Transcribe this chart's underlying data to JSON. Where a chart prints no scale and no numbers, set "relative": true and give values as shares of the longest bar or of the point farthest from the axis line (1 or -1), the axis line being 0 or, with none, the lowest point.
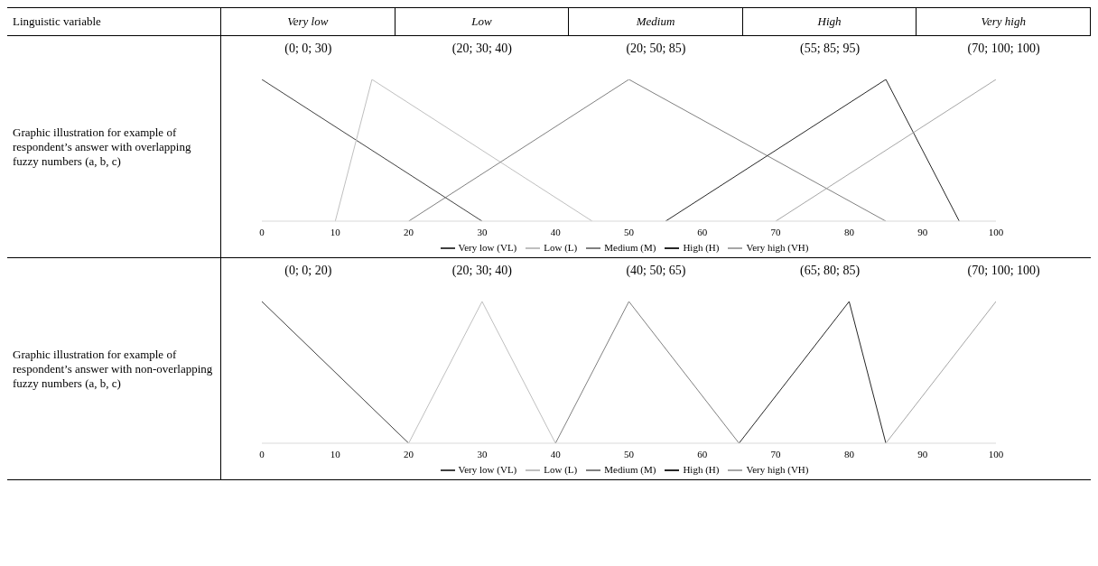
{
  "chart_data": [
    {
      "type": "other",
      "title": "Linguistic variable",
      "categories": [
        "Very low",
        "Low",
        "Medium",
        "High",
        "Very high"
      ]
    },
    {
      "type": "line",
      "title": "Graphic illustration for example of respondent’s answer with overlapping fuzzy numbers (a, b, c)",
      "annotations": [
        "(0; 0; 30)",
        "(20; 30; 40)",
        "(20; 50; 85)",
        "(55; 85; 95)",
        "(70; 100; 100)"
      ],
      "relative": true,
      "xlim": [
        0,
        100
      ],
      "xticks": [
        0,
        10,
        20,
        30,
        40,
        50,
        60,
        70,
        80,
        90,
        100
      ],
      "legend": "bottom",
      "line_style": "solid",
      "series": [
        {
          "name": "Very low (VL)",
          "color": "#404040",
          "x": [
            0,
            30
          ],
          "values": [
            1,
            0
          ]
        },
        {
          "name": "Low (L)",
          "color": "#bfbfbf",
          "x": [
            10,
            15,
            45
          ],
          "values": [
            0,
            1,
            0
          ]
        },
        {
          "name": "Medium (M)",
          "color": "#808080",
          "x": [
            20,
            50,
            85
          ],
          "values": [
            0,
            1,
            0
          ]
        },
        {
          "name": "High (H)",
          "color": "#262626",
          "x": [
            55,
            85,
            95
          ],
          "values": [
            0,
            1,
            0
          ]
        },
        {
          "name": "Very high (VH)",
          "color": "#a6a6a6",
          "x": [
            70,
            100
          ],
          "values": [
            0,
            1
          ]
        }
      ]
    },
    {
      "type": "line",
      "title": "Graphic illustration for example of respondent’s answer with non-overlapping fuzzy numbers (a, b, c)",
      "annotations": [
        "(0; 0; 20)",
        "(20; 30; 40)",
        "(40; 50; 65)",
        "(65; 80; 85)",
        "(70; 100; 100)"
      ],
      "relative": true,
      "xlim": [
        0,
        100
      ],
      "xticks": [
        0,
        10,
        20,
        30,
        40,
        50,
        60,
        70,
        80,
        90,
        100
      ],
      "legend": "bottom",
      "line_style": "solid",
      "series": [
        {
          "name": "Very low (VL)",
          "color": "#404040",
          "x": [
            0,
            20
          ],
          "values": [
            1,
            0
          ]
        },
        {
          "name": "Low (L)",
          "color": "#bfbfbf",
          "x": [
            20,
            30,
            40
          ],
          "values": [
            0,
            1,
            0
          ]
        },
        {
          "name": "Medium (M)",
          "color": "#808080",
          "x": [
            40,
            50,
            65
          ],
          "values": [
            0,
            1,
            0
          ]
        },
        {
          "name": "High (H)",
          "color": "#262626",
          "x": [
            65,
            80,
            85
          ],
          "values": [
            0,
            1,
            0
          ]
        },
        {
          "name": "Very high (VH)",
          "color": "#a6a6a6",
          "x": [
            85,
            100
          ],
          "values": [
            0,
            1
          ]
        }
      ]
    }
  ]
}
